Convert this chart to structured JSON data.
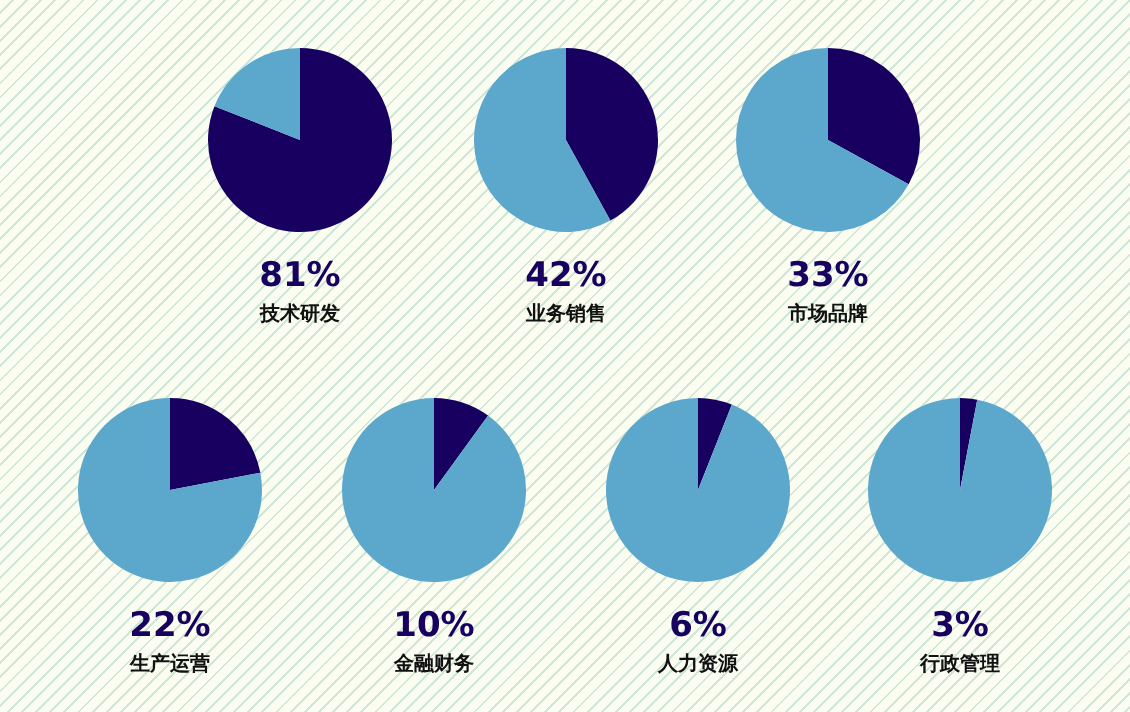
{
  "chart_data": [
    {
      "type": "pie",
      "title": "技术研发",
      "categories": [
        null,
        null
      ],
      "values": [
        81,
        19
      ],
      "colors": [
        "#170060",
        "#5ca8cc"
      ],
      "annotations": [
        "81%"
      ]
    },
    {
      "type": "pie",
      "title": "业务销售",
      "categories": [
        null,
        null
      ],
      "values": [
        42,
        58
      ],
      "colors": [
        "#170060",
        "#5ca8cc"
      ],
      "annotations": [
        "42%"
      ]
    },
    {
      "type": "pie",
      "title": "市场品牌",
      "categories": [
        null,
        null
      ],
      "values": [
        33,
        67
      ],
      "colors": [
        "#170060",
        "#5ca8cc"
      ],
      "annotations": [
        "33%"
      ]
    },
    {
      "type": "pie",
      "title": "生产运营",
      "categories": [
        null,
        null
      ],
      "values": [
        22,
        78
      ],
      "colors": [
        "#170060",
        "#5ca8cc"
      ],
      "annotations": [
        "22%"
      ]
    },
    {
      "type": "pie",
      "title": "金融财务",
      "categories": [
        null,
        null
      ],
      "values": [
        10,
        90
      ],
      "colors": [
        "#170060",
        "#5ca8cc"
      ],
      "annotations": [
        "10%"
      ]
    },
    {
      "type": "pie",
      "title": "人力资源",
      "categories": [
        null,
        null
      ],
      "values": [
        6,
        94
      ],
      "colors": [
        "#170060",
        "#5ca8cc"
      ],
      "annotations": [
        "6%"
      ]
    },
    {
      "type": "pie",
      "title": "行政管理",
      "categories": [
        null,
        null
      ],
      "values": [
        3,
        97
      ],
      "colors": [
        "#170060",
        "#5ca8cc"
      ],
      "annotations": [
        "3%"
      ]
    }
  ]
}
